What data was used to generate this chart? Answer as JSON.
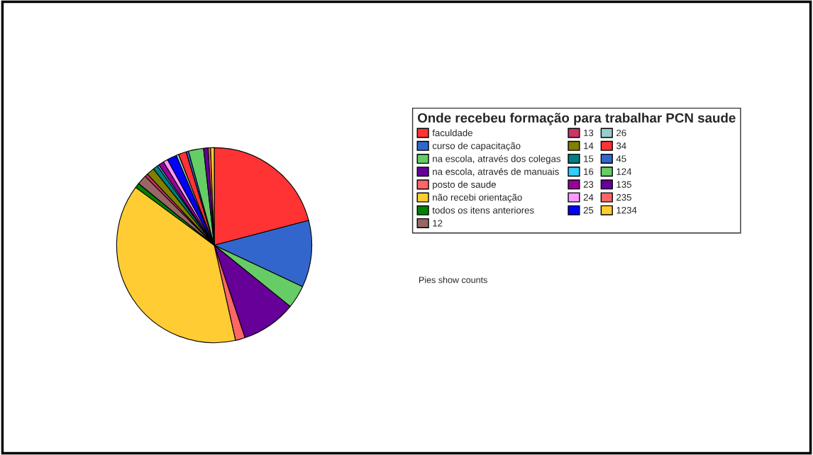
{
  "chart_data": {
    "type": "pie",
    "legend_title": "Onde recebeu formação para trabalhar PCN saude",
    "legend": "right",
    "categories": [
      "faculdade",
      "curso de capacitação",
      "na escola, através dos colegas",
      "na escola, através de manuais",
      "posto de saude",
      "não recebi orientação",
      "todos os itens anteriores",
      "12",
      "13",
      "14",
      "15",
      "16",
      "23",
      "24",
      "25",
      "26",
      "34",
      "45",
      "124",
      "135",
      "235",
      "1234"
    ],
    "values": [
      20.9,
      11.1,
      3.8,
      9.1,
      1.6,
      38.6,
      0.8,
      1.6,
      0.5,
      1.3,
      0.8,
      0.3,
      0.9,
      0.75,
      1.6,
      0.4,
      1.3,
      0.4,
      2.5,
      0.75,
      0.4,
      0.6
    ],
    "colors": [
      "#ff3333",
      "#3366cc",
      "#66cc66",
      "#660099",
      "#ff6666",
      "#ffcc33",
      "#008000",
      "#996666",
      "#cc3366",
      "#808000",
      "#008080",
      "#33ccff",
      "#990099",
      "#ff99ff",
      "#0000ff",
      "#99cccc",
      "#ff3333",
      "#3366cc",
      "#66cc66",
      "#660099",
      "#ff6666",
      "#ffcc33"
    ],
    "annotations": [
      "Pies show counts"
    ]
  }
}
